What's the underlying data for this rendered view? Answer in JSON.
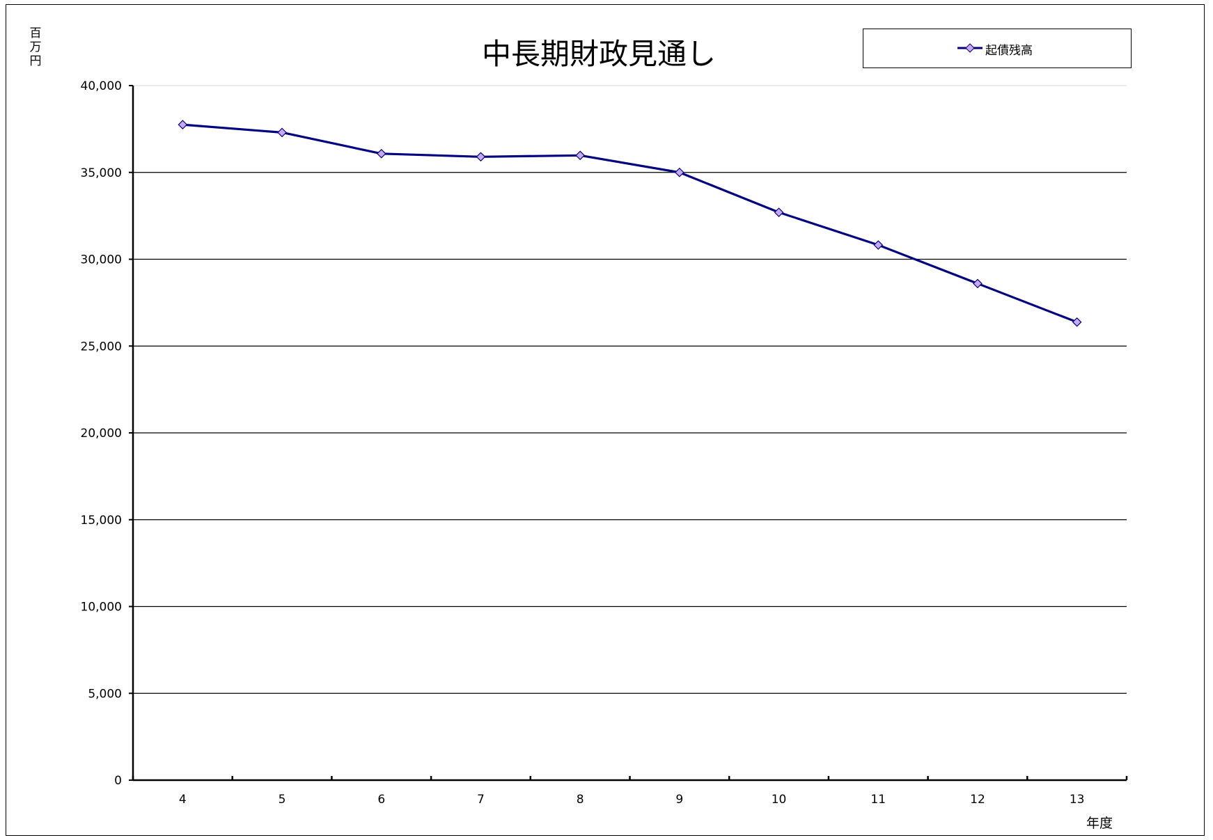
{
  "chart_data": {
    "type": "line",
    "title": "中長期財政見通し",
    "ylabel": "百万円",
    "xlabel": "年度",
    "categories": [
      "4",
      "5",
      "6",
      "7",
      "8",
      "9",
      "10",
      "11",
      "12",
      "13"
    ],
    "series": [
      {
        "name": "起債残高",
        "values": [
          37750,
          37300,
          36080,
          35900,
          35980,
          35000,
          32700,
          30820,
          28600,
          26380
        ],
        "color": "#000080",
        "marker_color": "#c9a8f2"
      }
    ],
    "ylim": [
      0,
      40000
    ],
    "yticks": [
      0,
      5000,
      10000,
      15000,
      20000,
      25000,
      30000,
      35000,
      40000
    ],
    "ytick_labels": [
      "0",
      "5,000",
      "10,000",
      "15,000",
      "20,000",
      "25,000",
      "30,000",
      "35,000",
      "40,000"
    ],
    "grid": true,
    "legend_position": "top-right",
    "marker": "diamond-icon"
  }
}
